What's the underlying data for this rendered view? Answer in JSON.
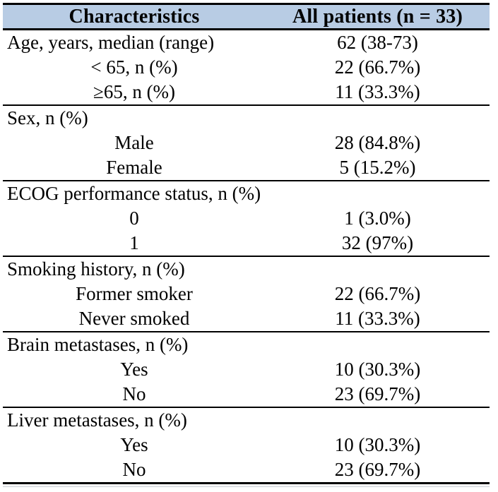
{
  "table": {
    "header": {
      "characteristics": "Characteristics",
      "all_patients": "All patients (n = 33)"
    },
    "rows": [
      {
        "label": "Age, years, median (range)",
        "value": "62 (38-73)"
      },
      {
        "label": "< 65, n (%)",
        "value": "22 (66.7%)"
      },
      {
        "label": "≥65, n (%)",
        "value": "11 (33.3%)"
      },
      {
        "label": "Sex, n (%)",
        "value": ""
      },
      {
        "label": "Male",
        "value": "28 (84.8%)"
      },
      {
        "label": "Female",
        "value": "5 (15.2%)"
      },
      {
        "label": "ECOG performance status, n (%)",
        "value": ""
      },
      {
        "label": "0",
        "value": "1 (3.0%)"
      },
      {
        "label": "1",
        "value": "32 (97%)"
      },
      {
        "label": "Smoking history, n (%)",
        "value": ""
      },
      {
        "label": "Former smoker",
        "value": "22 (66.7%)"
      },
      {
        "label": "Never smoked",
        "value": "11 (33.3%)"
      },
      {
        "label": "Brain metastases, n (%)",
        "value": ""
      },
      {
        "label": "Yes",
        "value": "10 (30.3%)"
      },
      {
        "label": "No",
        "value": "23 (69.7%)"
      },
      {
        "label": "Liver metastases, n (%)",
        "value": ""
      },
      {
        "label": "Yes",
        "value": "10 (30.3%)"
      },
      {
        "label": "No",
        "value": "23 (69.7%)"
      }
    ],
    "colors": {
      "header_bg": "#b8cce4",
      "border": "#000000",
      "text": "#000000"
    }
  }
}
